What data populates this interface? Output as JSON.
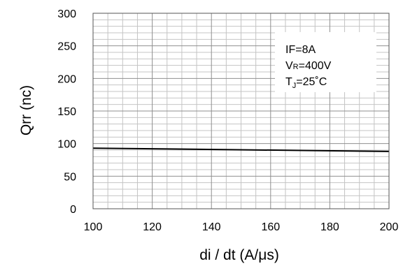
{
  "chart_data": {
    "type": "line",
    "title": "",
    "xlabel": "di / dt (A/μs)",
    "ylabel": "Qrr  (nc)",
    "xlim": [
      100,
      200
    ],
    "ylim": [
      0,
      300
    ],
    "x_ticks": [
      "100",
      "120",
      "140",
      "160",
      "180",
      "200"
    ],
    "y_ticks": [
      "0",
      "50",
      "100",
      "150",
      "200",
      "250",
      "300"
    ],
    "grid": true,
    "x_minor_step": 5,
    "y_minor_step": 10,
    "series": [
      {
        "x": [
          100,
          200
        ],
        "y": [
          93,
          88
        ]
      }
    ],
    "annotation": {
      "if_text": "IF=8A",
      "vr_main": "V",
      "vr_sub": "R",
      "vr_value": "=400V",
      "tj_main": "T",
      "tj_sub": "J",
      "tj_value": "=25˚C"
    }
  }
}
